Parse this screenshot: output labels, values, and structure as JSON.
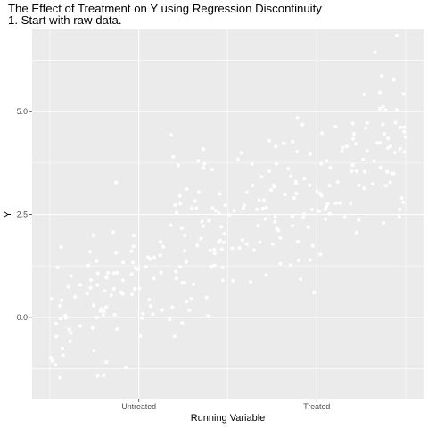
{
  "chart_data": {
    "type": "scatter",
    "title": "The Effect of Treatment on Y using Regression Discontinuity",
    "subtitle": "1. Start with raw data.",
    "xlabel": "Running Variable",
    "ylabel": "Y",
    "xlim": [
      -0.05,
      1.05
    ],
    "ylim": [
      -2.0,
      7.0
    ],
    "x_ticks": [
      {
        "value": 0.25,
        "label": "Untreated"
      },
      {
        "value": 0.75,
        "label": "Treated"
      }
    ],
    "y_ticks": [
      {
        "value": 0.0,
        "label": "0.0"
      },
      {
        "value": 2.5,
        "label": "2.5"
      },
      {
        "value": 5.0,
        "label": "5.0"
      }
    ],
    "threshold": 0.5,
    "grid": true,
    "legend": "none",
    "point_color": "#ffffff",
    "panel_background": "#ebebeb",
    "grid_color": "#ffffff",
    "n_points": 300,
    "untreated_intercept": -0.2,
    "untreated_slope": 5.0,
    "treated_intercept": 1.9,
    "treated_slope": 5.0,
    "noise_sd": 0.95,
    "seed": 7
  }
}
